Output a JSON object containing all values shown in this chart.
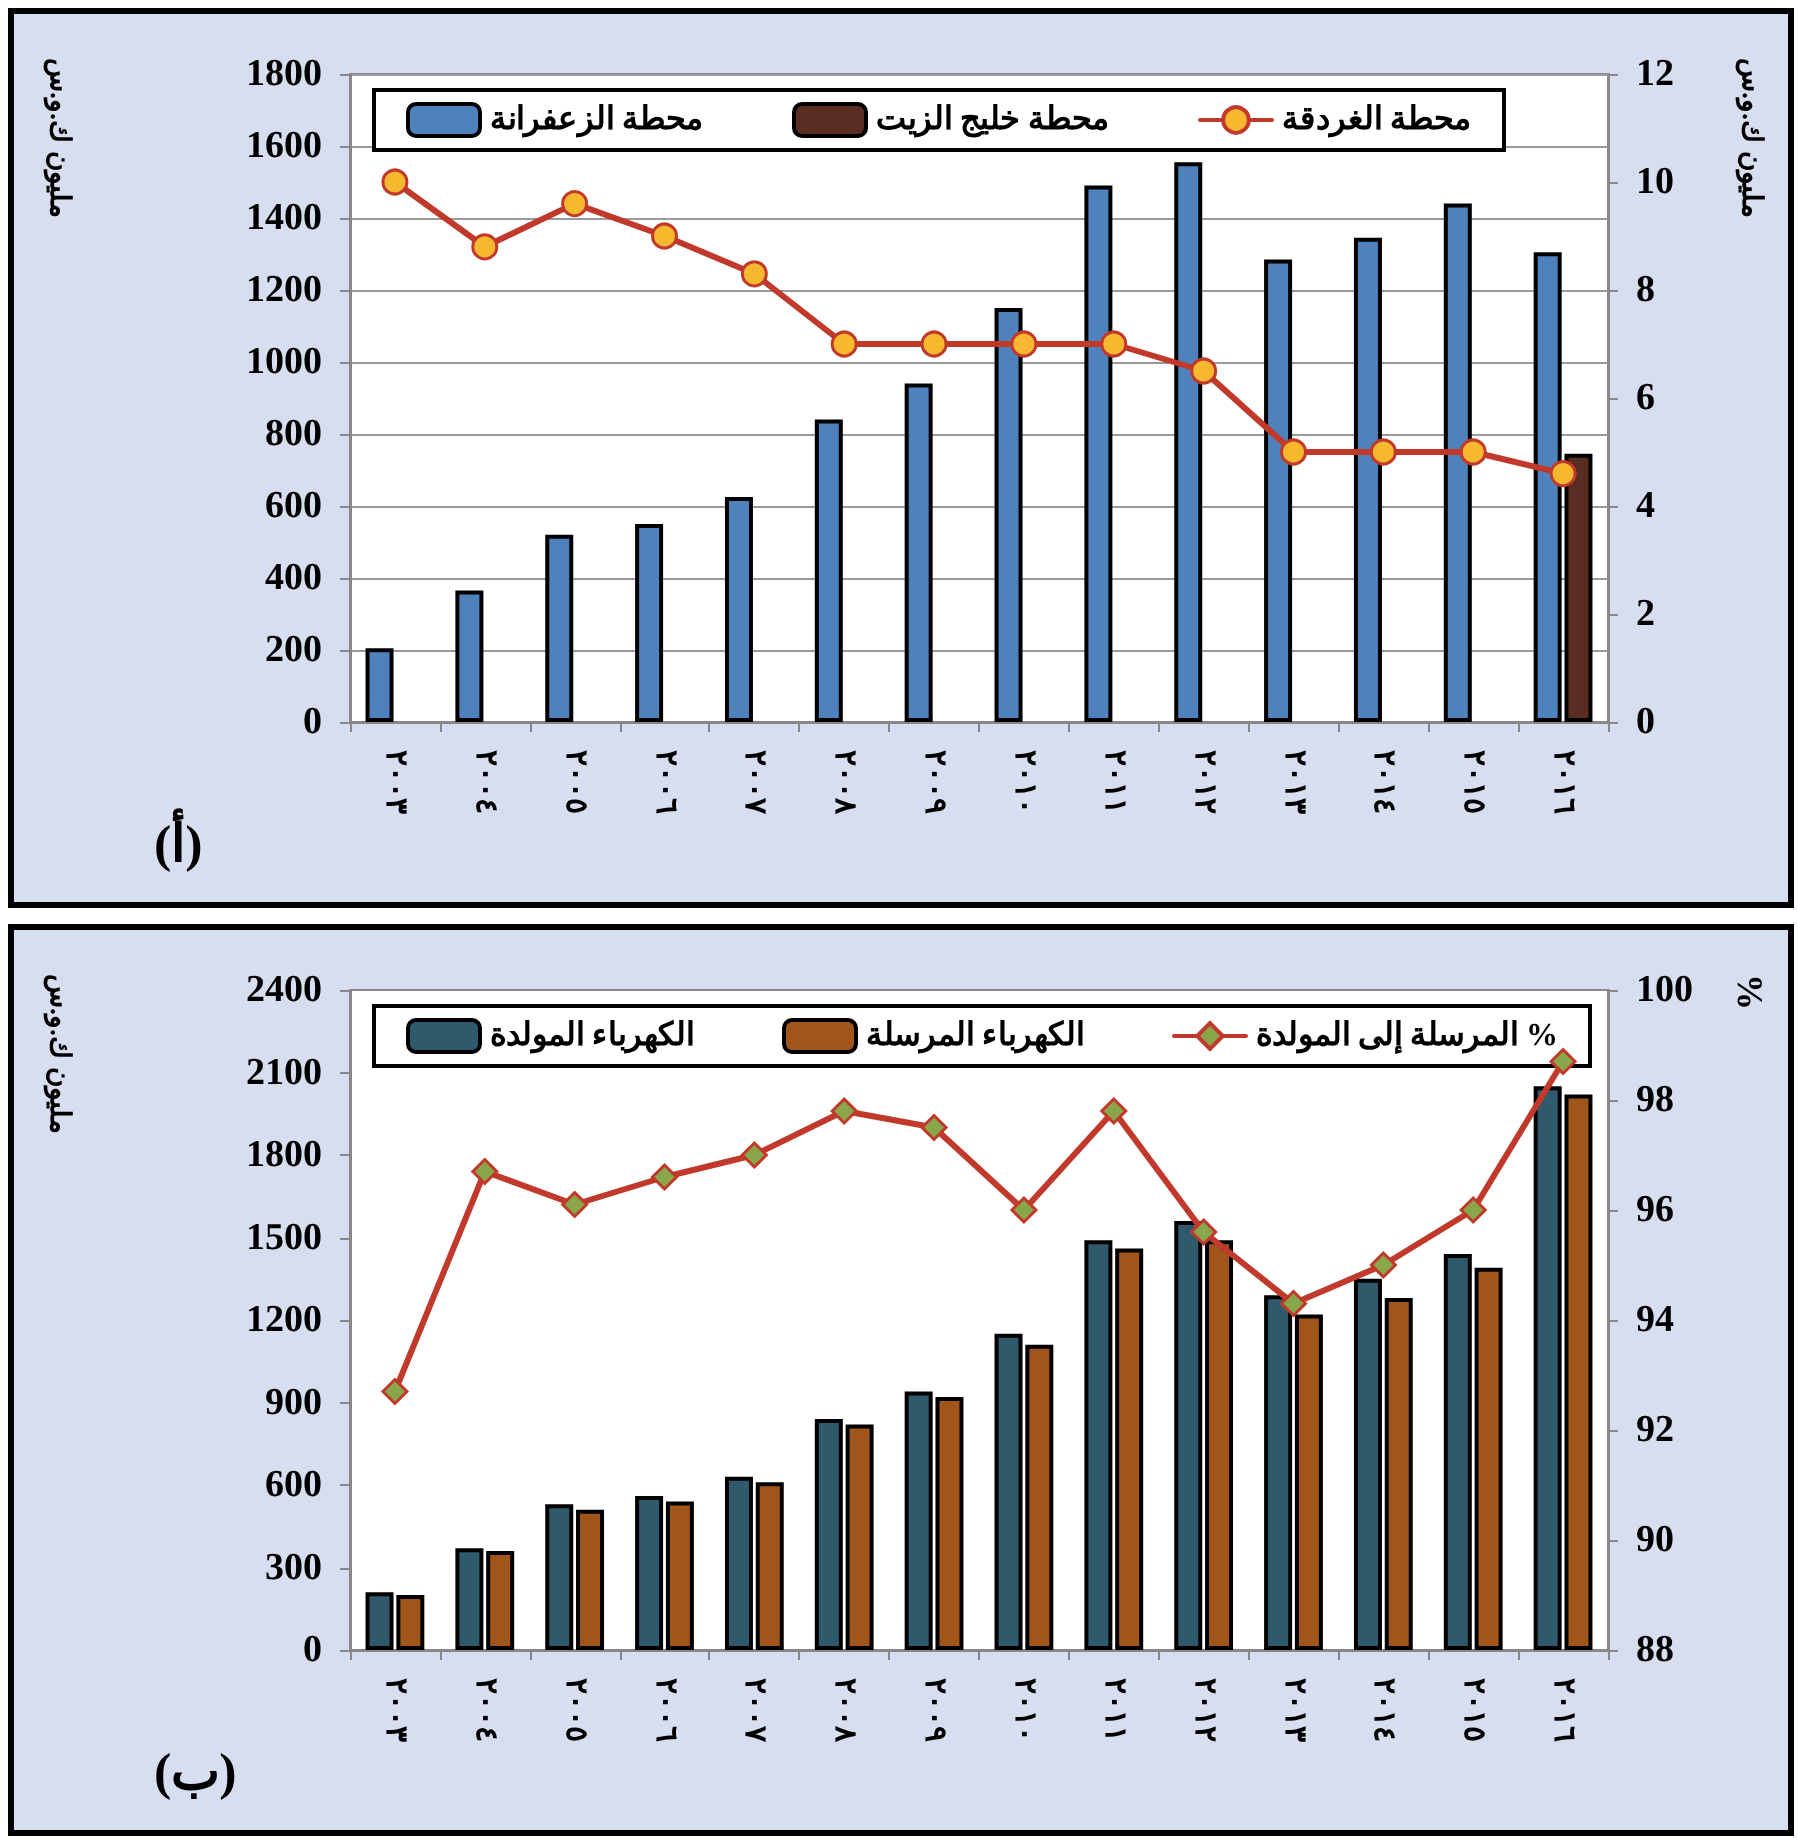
{
  "chart_data": [
    {
      "type": "bar",
      "categories": [
        "٢٠٠٣",
        "٢٠٠٤",
        "٢٠٠٥",
        "٢٠٠٦",
        "٢٠٠٧",
        "٢٠٠٨",
        "٢٠٠٩",
        "٢٠١٠",
        "٢٠١١",
        "٢٠١٢",
        "٢٠١٣",
        "٢٠١٤",
        "٢٠١٥",
        "٢٠١٦"
      ],
      "ylabel": "مليون ك.و.س",
      "y2label": "مليون ك.و.س",
      "annotations": [
        "(أ)"
      ],
      "series": [
        {
          "name": "محطة الزعفرانة",
          "color": "#4f81bd",
          "values": [
            205,
            365,
            520,
            550,
            625,
            840,
            940,
            1150,
            1490,
            1555,
            1285,
            1345,
            1440,
            1305
          ]
        },
        {
          "name": "محطة خليج الزيت",
          "color": "#5a2d22",
          "values": [
            null,
            null,
            null,
            null,
            null,
            null,
            null,
            null,
            null,
            null,
            null,
            null,
            null,
            745
          ]
        },
        {
          "name": "محطة الغردقة",
          "type": "line",
          "axis": "y2",
          "color": "#c0392b",
          "values": [
            10,
            8.8,
            9.6,
            9,
            8.3,
            7,
            7,
            7,
            7,
            6.5,
            5,
            5,
            5,
            4.6
          ]
        }
      ],
      "ylim": [
        0,
        1800
      ],
      "yticks": [
        0,
        200,
        400,
        600,
        800,
        1000,
        1200,
        1400,
        1600,
        1800
      ],
      "y2lim": [
        0,
        12
      ],
      "y2ticks": [
        0,
        2,
        4,
        6,
        8,
        10,
        12
      ],
      "grid": "y",
      "legend": "top",
      "marker": "circle",
      "line_style": "solid"
    },
    {
      "type": "bar",
      "categories": [
        "٢٠٠٣",
        "٢٠٠٤",
        "٢٠٠٥",
        "٢٠٠٦",
        "٢٠٠٧",
        "٢٠٠٨",
        "٢٠٠٩",
        "٢٠١٠",
        "٢٠١١",
        "٢٠١٢",
        "٢٠١٣",
        "٢٠١٤",
        "٢٠١٥",
        "٢٠١٦"
      ],
      "ylabel": "مليون ك.و.س",
      "y2label": "%",
      "annotations": [
        "(ب)"
      ],
      "series": [
        {
          "name": "الكهرباء المولدة",
          "color": "#2e5a6b",
          "values": [
            210,
            370,
            530,
            560,
            630,
            840,
            940,
            1150,
            1490,
            1560,
            1290,
            1350,
            1440,
            2050
          ]
        },
        {
          "name": "الكهرباء المرسلة",
          "color": "#a0561b",
          "values": [
            200,
            360,
            510,
            540,
            610,
            820,
            920,
            1110,
            1460,
            1490,
            1220,
            1280,
            1390,
            2020
          ]
        },
        {
          "name": "المرسلة إلى المولدة %",
          "type": "line",
          "axis": "y2",
          "color": "#c0392b",
          "values": [
            92.7,
            96.7,
            96.1,
            96.6,
            97,
            97.8,
            97.5,
            96,
            97.8,
            95.6,
            94.3,
            95,
            96,
            98.7
          ]
        }
      ],
      "ylim": [
        0,
        2400
      ],
      "yticks": [
        0,
        300,
        600,
        900,
        1200,
        1500,
        1800,
        2100,
        2400
      ],
      "y2lim": [
        88,
        100
      ],
      "y2ticks": [
        88,
        90,
        92,
        94,
        96,
        98,
        100
      ],
      "grid": false,
      "legend": "top",
      "marker": "diamond",
      "line_style": "solid"
    }
  ]
}
